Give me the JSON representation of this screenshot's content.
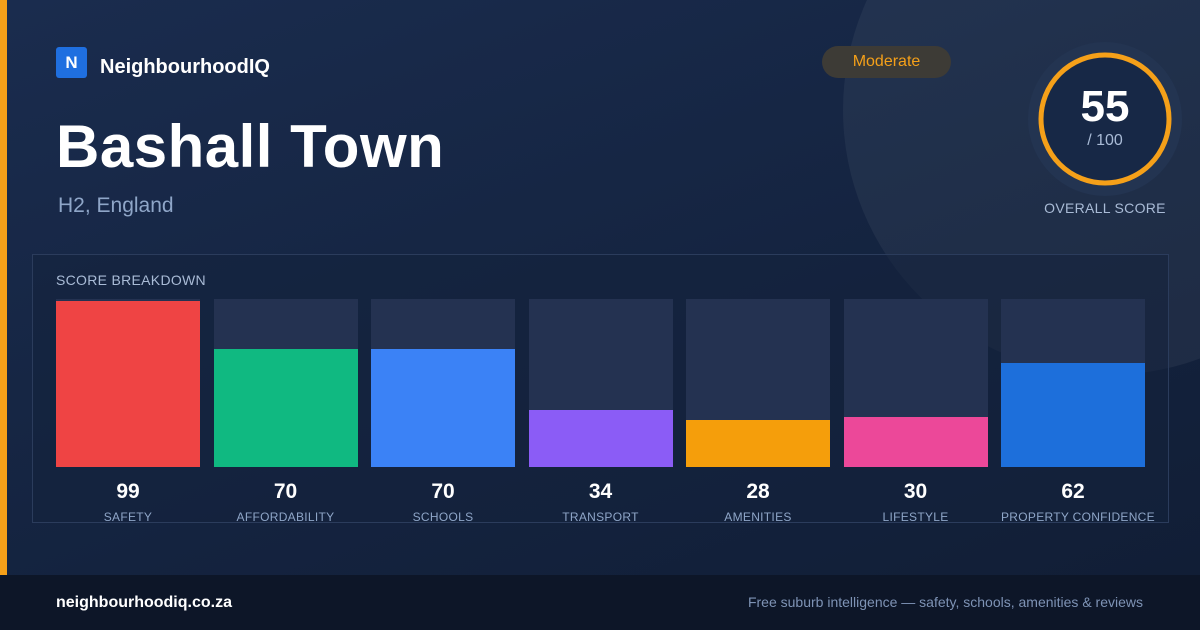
{
  "brand": {
    "logo_letter": "N",
    "name": "NeighbourhoodIQ"
  },
  "suburb": {
    "name": "Bashall Town",
    "location": "H2, England"
  },
  "badge": {
    "label": "Moderate",
    "color": "#f5a019"
  },
  "overall": {
    "score": 55,
    "max_label": "/ 100",
    "label": "OVERALL SCORE",
    "ring_color": "#f5a019"
  },
  "breakdown": {
    "title": "SCORE BREAKDOWN",
    "items": [
      {
        "value": 99,
        "label": "SAFETY",
        "color": "#ef4444"
      },
      {
        "value": 70,
        "label": "AFFORDABILITY",
        "color": "#10b981"
      },
      {
        "value": 70,
        "label": "SCHOOLS",
        "color": "#3b82f6"
      },
      {
        "value": 34,
        "label": "TRANSPORT",
        "color": "#8b5cf6"
      },
      {
        "value": 28,
        "label": "AMENITIES",
        "color": "#f59e0b"
      },
      {
        "value": 30,
        "label": "LIFESTYLE",
        "color": "#ec4899"
      },
      {
        "value": 62,
        "label": "PROPERTY CONFIDENCE",
        "color": "#1d6fdb"
      }
    ]
  },
  "footer": {
    "url": "neighbourhoodiq.co.za",
    "tagline": "Free suburb intelligence — safety, schools, amenities & reviews"
  }
}
